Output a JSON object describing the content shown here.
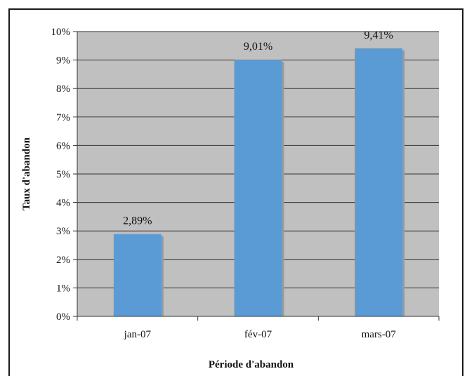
{
  "chart_data": {
    "type": "bar",
    "categories": [
      "jan-07",
      "fév-07",
      "mars-07"
    ],
    "values": [
      2.89,
      9.01,
      9.41
    ],
    "data_labels": [
      "2,89%",
      "9,01%",
      "9,41%"
    ],
    "title": "",
    "xlabel": "Période d'abandon",
    "ylabel": "Taux d'abandon",
    "ylim": [
      0,
      10
    ],
    "y_ticks": [
      0,
      1,
      2,
      3,
      4,
      5,
      6,
      7,
      8,
      9,
      10
    ],
    "y_tick_labels": [
      "0%",
      "1%",
      "2%",
      "3%",
      "4%",
      "5%",
      "6%",
      "7%",
      "8%",
      "9%",
      "10%"
    ],
    "grid": true,
    "legend": "none",
    "colors": {
      "bar": "#5b9bd5",
      "bar_shadow": "#9a9a9a",
      "plot_background": "#c0c0c0",
      "gridline": "#333333"
    }
  }
}
